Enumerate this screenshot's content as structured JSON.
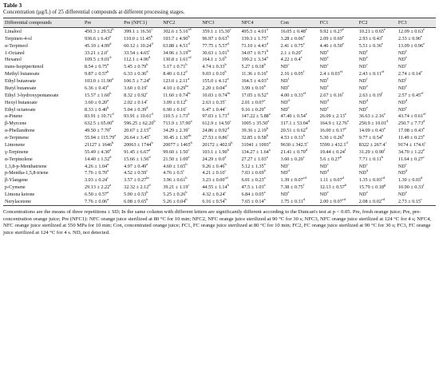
{
  "caption": {
    "title": "Table 3",
    "text": "Concentration (μg/L) of 25 differential compounds at different processing stages."
  },
  "table": {
    "columns": [
      "Differential compounds",
      "Pre",
      "Pre (NFC1)",
      "NFC2",
      "NFC3",
      "NFC4",
      "Con",
      "FC1",
      "FC2",
      "FC3"
    ],
    "rows": [
      {
        "compound": "Linalool",
        "cells": [
          [
            "450.3 ± 29.52",
            "b"
          ],
          [
            "399.1 ± 16.56",
            "c"
          ],
          [
            "302.6 ± 5.16",
            "cd"
          ],
          [
            "359.1 ± 15.30",
            "c"
          ],
          [
            "495.5 ± 4.01",
            "a"
          ],
          [
            "16.05 ± 0.48",
            "e"
          ],
          [
            "9.92 ± 0.27",
            "e"
          ],
          [
            "10.21 ± 0.65",
            "e"
          ],
          [
            "12.09 ± 0.63",
            "e"
          ]
        ]
      },
      {
        "compound": "Terpinen-4-ol",
        "cells": [
          [
            "936.6 ± 6.43",
            "a"
          ],
          [
            "110.0 ± 11.45",
            "b"
          ],
          [
            "103.7 ± 4.90",
            "b"
          ],
          [
            "96.97 ± 0.63",
            "b"
          ],
          [
            "139.3 ± 1.75",
            "a"
          ],
          [
            "3.28 ± 0.06",
            "e"
          ],
          [
            "2.09 ± 0.69",
            "e"
          ],
          [
            "2.93 ± 0.43",
            "e"
          ],
          [
            "2.33 ± 0.96",
            "e"
          ]
        ]
      },
      {
        "compound": "α-Terpineol",
        "cells": [
          [
            "45.10 ± 4.99",
            "d"
          ],
          [
            "60.12 ± 10.24",
            "d"
          ],
          [
            "63.88 ± 4.51",
            "d"
          ],
          [
            "77.75 ± 5.57",
            "d"
          ],
          [
            "71.10 ± 4.43",
            "d"
          ],
          [
            "2.41 ± 0.75",
            "e"
          ],
          [
            "4.46 ± 0.50",
            "e"
          ],
          [
            "5.51 ± 0.36",
            "e"
          ],
          [
            "13.09 ± 0.96",
            "e"
          ]
        ]
      },
      {
        "compound": "1-Octanol",
        "cells": [
          [
            "33.21 ± 2.0",
            "c"
          ],
          [
            "33.54 ± 4.65",
            "c"
          ],
          [
            "34.96 ± 3.19",
            "bc"
          ],
          [
            "30.63 ± 3.01",
            "b"
          ],
          [
            "34.07 ± 0.71",
            "b"
          ],
          [
            "2.1 ± 0.20",
            "e"
          ],
          [
            "ND",
            "e"
          ],
          [
            "ND",
            "e"
          ],
          [
            "ND",
            "e"
          ]
        ]
      },
      {
        "compound": "Hexanol",
        "cells": [
          [
            "109.5 ± 9.01",
            "d"
          ],
          [
            "112.1 ± 4.96",
            "d"
          ],
          [
            "130.8 ± 1.61",
            "cd"
          ],
          [
            "164.1 ± 3.0",
            "b"
          ],
          [
            "199.2 ± 3.34",
            "a"
          ],
          [
            "4.22 ± 0.4",
            "e"
          ],
          [
            "ND",
            "e"
          ],
          [
            "ND",
            "e"
          ],
          [
            "ND",
            "e"
          ]
        ]
      },
      {
        "compound": "trans-Isopiperitenol",
        "cells": [
          [
            "8.54 ± 0.75",
            "a"
          ],
          [
            "5.45 ± 0.79",
            "b"
          ],
          [
            "5.17 ± 0.71",
            "b"
          ],
          [
            "4.74 ± 0.33",
            "b"
          ],
          [
            "5.27 ± 0.18",
            "b"
          ],
          [
            "ND",
            "c"
          ],
          [
            "ND",
            "c"
          ],
          [
            "ND",
            "c"
          ],
          [
            "ND",
            "c"
          ]
        ]
      },
      {
        "compound": "Methyl butanoate",
        "cells": [
          [
            "9.87 ± 0.57",
            "b"
          ],
          [
            "6.33 ± 0.36",
            "d"
          ],
          [
            "8.40 ± 0.12",
            "d"
          ],
          [
            "9.03 ± 0.10",
            "b"
          ],
          [
            "11.36 ± 0.16",
            "a"
          ],
          [
            "2.16 ± 0.05",
            "f"
          ],
          [
            "2.4 ± 0.03",
            "ef"
          ],
          [
            "2.43 ± 0.11",
            "ef"
          ],
          [
            "2.74 ± 0.14",
            "e"
          ]
        ]
      },
      {
        "compound": "Ethyl butanoate",
        "cells": [
          [
            "103.0 ± 11.90",
            "a"
          ],
          [
            "106.5 ± 7.24",
            "a"
          ],
          [
            "123.0 ± 2.11",
            "a"
          ],
          [
            "155.0 ± 4.12",
            "a"
          ],
          [
            "164.5 ± 4.03",
            "a"
          ],
          [
            "ND",
            "f"
          ],
          [
            "ND",
            "f"
          ],
          [
            "ND",
            "f"
          ],
          [
            "ND",
            "f"
          ]
        ]
      },
      {
        "compound": "Butyl butanoate",
        "cells": [
          [
            "6.36 ± 0.43",
            "a"
          ],
          [
            "3.60 ± 0.19",
            "c"
          ],
          [
            "4.10 ± 0.29",
            "bc"
          ],
          [
            "2.20 ± 0.04",
            "d"
          ],
          [
            "3.99 ± 0.10",
            "b"
          ],
          [
            "ND",
            "e"
          ],
          [
            "ND",
            "e"
          ],
          [
            "ND",
            "e"
          ],
          [
            "ND",
            "e"
          ]
        ]
      },
      {
        "compound": "Ethyl 3-hydroxypentanoate",
        "cells": [
          [
            "15.57 ± 1.60",
            "b"
          ],
          [
            "8.32 ± 0.92",
            "c"
          ],
          [
            "11.60 ± 0.74",
            "bc"
          ],
          [
            "10.03 ± 0.74",
            "bc"
          ],
          [
            "17.05 ± 0.52",
            "a"
          ],
          [
            "4.00 ± 0.33",
            "ef"
          ],
          [
            "2.67 ± 0.16",
            "f"
          ],
          [
            "2.63 ± 0.19",
            "f"
          ],
          [
            "2.57 ± 0.45",
            "ef"
          ]
        ]
      },
      {
        "compound": "Hexyl butanoate",
        "cells": [
          [
            "3.60 ± 0.20",
            "a"
          ],
          [
            "2.02 ± 0.14",
            "c"
          ],
          [
            "3.09 ± 0.12",
            "b"
          ],
          [
            "2.63 ± 0.35",
            "c"
          ],
          [
            "2.01 ± 0.07",
            "c"
          ],
          [
            "ND",
            "d"
          ],
          [
            "ND",
            "d"
          ],
          [
            "ND",
            "d"
          ],
          [
            "ND",
            "d"
          ]
        ]
      },
      {
        "compound": "Ethyl octanoate",
        "cells": [
          [
            "8.33 ± 0.40",
            "b"
          ],
          [
            "5.04 ± 0.39",
            "d"
          ],
          [
            "6.90 ± 0.16",
            "c"
          ],
          [
            "6.47 ± 0.44",
            "c"
          ],
          [
            "9.16 ± 0.29",
            "a"
          ],
          [
            "ND",
            "e"
          ],
          [
            "ND",
            "e"
          ],
          [
            "ND",
            "e"
          ],
          [
            "ND",
            "e"
          ]
        ]
      },
      {
        "compound": "α-Pinene",
        "cells": [
          [
            "83.91 ± 10.71",
            "d"
          ],
          [
            "93.91 ± 10.61",
            "d"
          ],
          [
            "110.5 ± 1.73",
            "d"
          ],
          [
            "97.03 ± 1.73",
            "d"
          ],
          [
            "147.22 ± 5.88",
            "a"
          ],
          [
            "47.40 ± 0.54",
            "e"
          ],
          [
            "26.09 ± 2.13",
            "e"
          ],
          [
            "36.63 ± 2.16",
            "e"
          ],
          [
            "43.74 ± 0.61",
            "ef"
          ]
        ]
      },
      {
        "compound": "β-Myrcene",
        "cells": [
          [
            "632.5 ± 65.00",
            "a"
          ],
          [
            "596.25 ± 62.20",
            "b"
          ],
          [
            "713.9 ± 37.90",
            "a"
          ],
          [
            "612.9 ± 14.50",
            "c"
          ],
          [
            "1005 ± 35.50",
            "a"
          ],
          [
            "317.1 ± 53.04",
            "d"
          ],
          [
            "164.9 ± 12.76",
            "e"
          ],
          [
            "250.9 ± 10.01",
            "d"
          ],
          [
            "250.7 ± 7.73",
            "d"
          ]
        ]
      },
      {
        "compound": "α-Phellandrene",
        "cells": [
          [
            "49.50 ± 7.70",
            "a"
          ],
          [
            "20.67 ± 2.15",
            "d"
          ],
          [
            "34.29 ± 2.39",
            "c"
          ],
          [
            "24.86 ± 0.92",
            "d"
          ],
          [
            "39.36 ± 2.19",
            "b"
          ],
          [
            "20.51 ± 0.62",
            "d"
          ],
          [
            "16.00 ± 0.17",
            "e"
          ],
          [
            "14.09 ± 0.43",
            "e"
          ],
          [
            "17.08 ± 0.43",
            "e"
          ]
        ]
      },
      {
        "compound": "α-Terpinene",
        "cells": [
          [
            "55.94 ± 115.79",
            "a"
          ],
          [
            "26.64 ± 3.45",
            "e"
          ],
          [
            "30.45 ± 1.30",
            "ab"
          ],
          [
            "27.53 ± 0.86",
            "c"
          ],
          [
            "32.85 ± 0.58",
            "b"
          ],
          [
            "4.53 ± 0.31",
            "b"
          ],
          [
            "5.30 ± 0.26",
            "b"
          ],
          [
            "9.77 ± 0.54",
            "a"
          ],
          [
            "11.49 ± 0.23",
            "a"
          ]
        ]
      },
      {
        "compound": "Limonene",
        "cells": [
          [
            "21127 ± 1646",
            "b"
          ],
          [
            "20063 ± 1744",
            "b"
          ],
          [
            "20077 ± 1465",
            "b"
          ],
          [
            "20172 ± 402.9",
            "b"
          ],
          [
            "31041 ± 1003",
            "a"
          ],
          [
            "9630 ± 342.5",
            "c"
          ],
          [
            "5599 ± 432.1",
            "d"
          ],
          [
            "8322 ± 267.4",
            "c"
          ],
          [
            "9174 ± 174.6",
            "c"
          ]
        ]
      },
      {
        "compound": "γ-Terpinene",
        "cells": [
          [
            "55.49 ± 4.30",
            "a"
          ],
          [
            "91.45 ± 6.67",
            "a"
          ],
          [
            "99.60 ± 1.50",
            "c"
          ],
          [
            "103.1 ± 1.90",
            "b"
          ],
          [
            "134.27 ± 1.64",
            "a"
          ],
          [
            "21.41 ± 0.70",
            "d"
          ],
          [
            "19.44 ± 0.24",
            "f"
          ],
          [
            "31.29 ± 0.90",
            "f"
          ],
          [
            "34.70 ± 1.22",
            "e"
          ]
        ]
      },
      {
        "compound": "α-Terpinolene",
        "cells": [
          [
            "14.40 ± 1.52",
            "d"
          ],
          [
            "15.66 ± 1.56",
            "d"
          ],
          [
            "21.50 ± 1.09",
            "a"
          ],
          [
            "24.29 ± 0.0",
            "a"
          ],
          [
            "27.27 ± 1.03",
            "a"
          ],
          [
            "3.60 ± 0.20",
            "c"
          ],
          [
            "5.6 ± 0.27",
            "b"
          ],
          [
            "7.71 ± 0.11",
            "b"
          ],
          [
            "11.64 ± 0.27",
            "c"
          ]
        ]
      },
      {
        "compound": "1,3,8-p-Menthatriene",
        "cells": [
          [
            "4.26 ± 1.04",
            "a"
          ],
          [
            "4.97 ± 0.49",
            "a"
          ],
          [
            "4.60 ± 1.65",
            "b"
          ],
          [
            "9.26 ± 0.46",
            "b"
          ],
          [
            "5.12 ± 1.35",
            "a"
          ],
          [
            "ND",
            "c"
          ],
          [
            "ND",
            "c"
          ],
          [
            "ND",
            "c"
          ],
          [
            "ND",
            "c"
          ]
        ]
      },
      {
        "compound": "p-Mentha-1,5,8-triene",
        "cells": [
          [
            "7.76 ± 0.70",
            "a"
          ],
          [
            "4.52 ± 0.59",
            "c"
          ],
          [
            "4.76 ± 0.5",
            "c"
          ],
          [
            "4.21 ± 0.10",
            "c"
          ],
          [
            "7.03 ± 0.69",
            "b"
          ],
          [
            "ND",
            "d"
          ],
          [
            "ND",
            "d"
          ],
          [
            "ND",
            "d"
          ],
          [
            "ND",
            "d"
          ]
        ]
      },
      {
        "compound": "β-Ylangene",
        "cells": [
          [
            "3.03 ± 0.24",
            "c"
          ],
          [
            "3.57 ± 0.27",
            "bc"
          ],
          [
            "3.96 ± 0.61",
            "b"
          ],
          [
            "3.23 ± 0.00",
            "cd"
          ],
          [
            "6.01 ± 0.23",
            "a"
          ],
          [
            "1.39 ± 0.07",
            "cd"
          ],
          [
            "1.11 ± 0.07",
            "d"
          ],
          [
            "1.35 ± 0.03",
            "cd"
          ],
          [
            "1.30 ± 0.03",
            "d"
          ]
        ]
      },
      {
        "compound": "p-Cymene",
        "cells": [
          [
            "29.13 ± 2.22",
            "a"
          ],
          [
            "32.32 ± 2.12",
            "d"
          ],
          [
            "39.21 ± 1.19",
            "c"
          ],
          [
            "44.55 ± 1.14",
            "b"
          ],
          [
            "47.5 ± 1.03",
            "a"
          ],
          [
            "7.38 ± 0.75",
            "f"
          ],
          [
            "12.13 ± 0.57",
            "h"
          ],
          [
            "15.79 ± 0.18",
            "g"
          ],
          [
            "10.90 ± 0.33",
            "f"
          ]
        ]
      },
      {
        "compound": "Limona ketone",
        "cells": [
          [
            "6.50 ± 0.57",
            "a"
          ],
          [
            "5.00 ± 0.53",
            "b"
          ],
          [
            "5.25 ± 0.26",
            "b"
          ],
          [
            "4.32 ± 0.24",
            "c"
          ],
          [
            "6.84 ± 0.05",
            "a"
          ],
          [
            "ND",
            "e"
          ],
          [
            "ND",
            "e"
          ],
          [
            "ND",
            "e"
          ],
          [
            "ND",
            "e"
          ]
        ]
      },
      {
        "compound": "Nerylacetone",
        "cells": [
          [
            "7.76 ± 0.06",
            "a"
          ],
          [
            "6.08 ± 0.65",
            "b"
          ],
          [
            "5.26 ± 0.04",
            "b"
          ],
          [
            "6.16 ± 0.54",
            "b"
          ],
          [
            "7.65 ± 0.14",
            "a"
          ],
          [
            "1.75 ± 0.31",
            "d"
          ],
          [
            "2.00 ± 0.07",
            "cd"
          ],
          [
            "2.08 ± 0.02",
            "cd"
          ],
          [
            "2.73 ± 0.15",
            "c"
          ]
        ]
      }
    ]
  },
  "footnote": "Concentrations are the means of three repetitions ± SD; In the same column with different letters are significantly different according to the Duncan's test at p < 0.05. Pre, fresh orange juice; Pre, pre-concentration orange juice; Pre (NFC1): NFC orange juice sterilized at 80 °C for 10 min; NFC2, NFC orange juice sterilized at 90 °C for 30 s; NFC3, NFC orange juice sterilized at 124 °C for 4 s; NFC4, NFC orange juice sterilized at 550 MPa for 10 min; Con, concentrated orange juice; FC1, FC orange juice sterilized at 80 °C for 10 min; FC2, FC orange juice sterilized at 90 °C for 30 s; FC3, FC orange juice sterilized at 124 °C for 4 s. ND, not detected."
}
